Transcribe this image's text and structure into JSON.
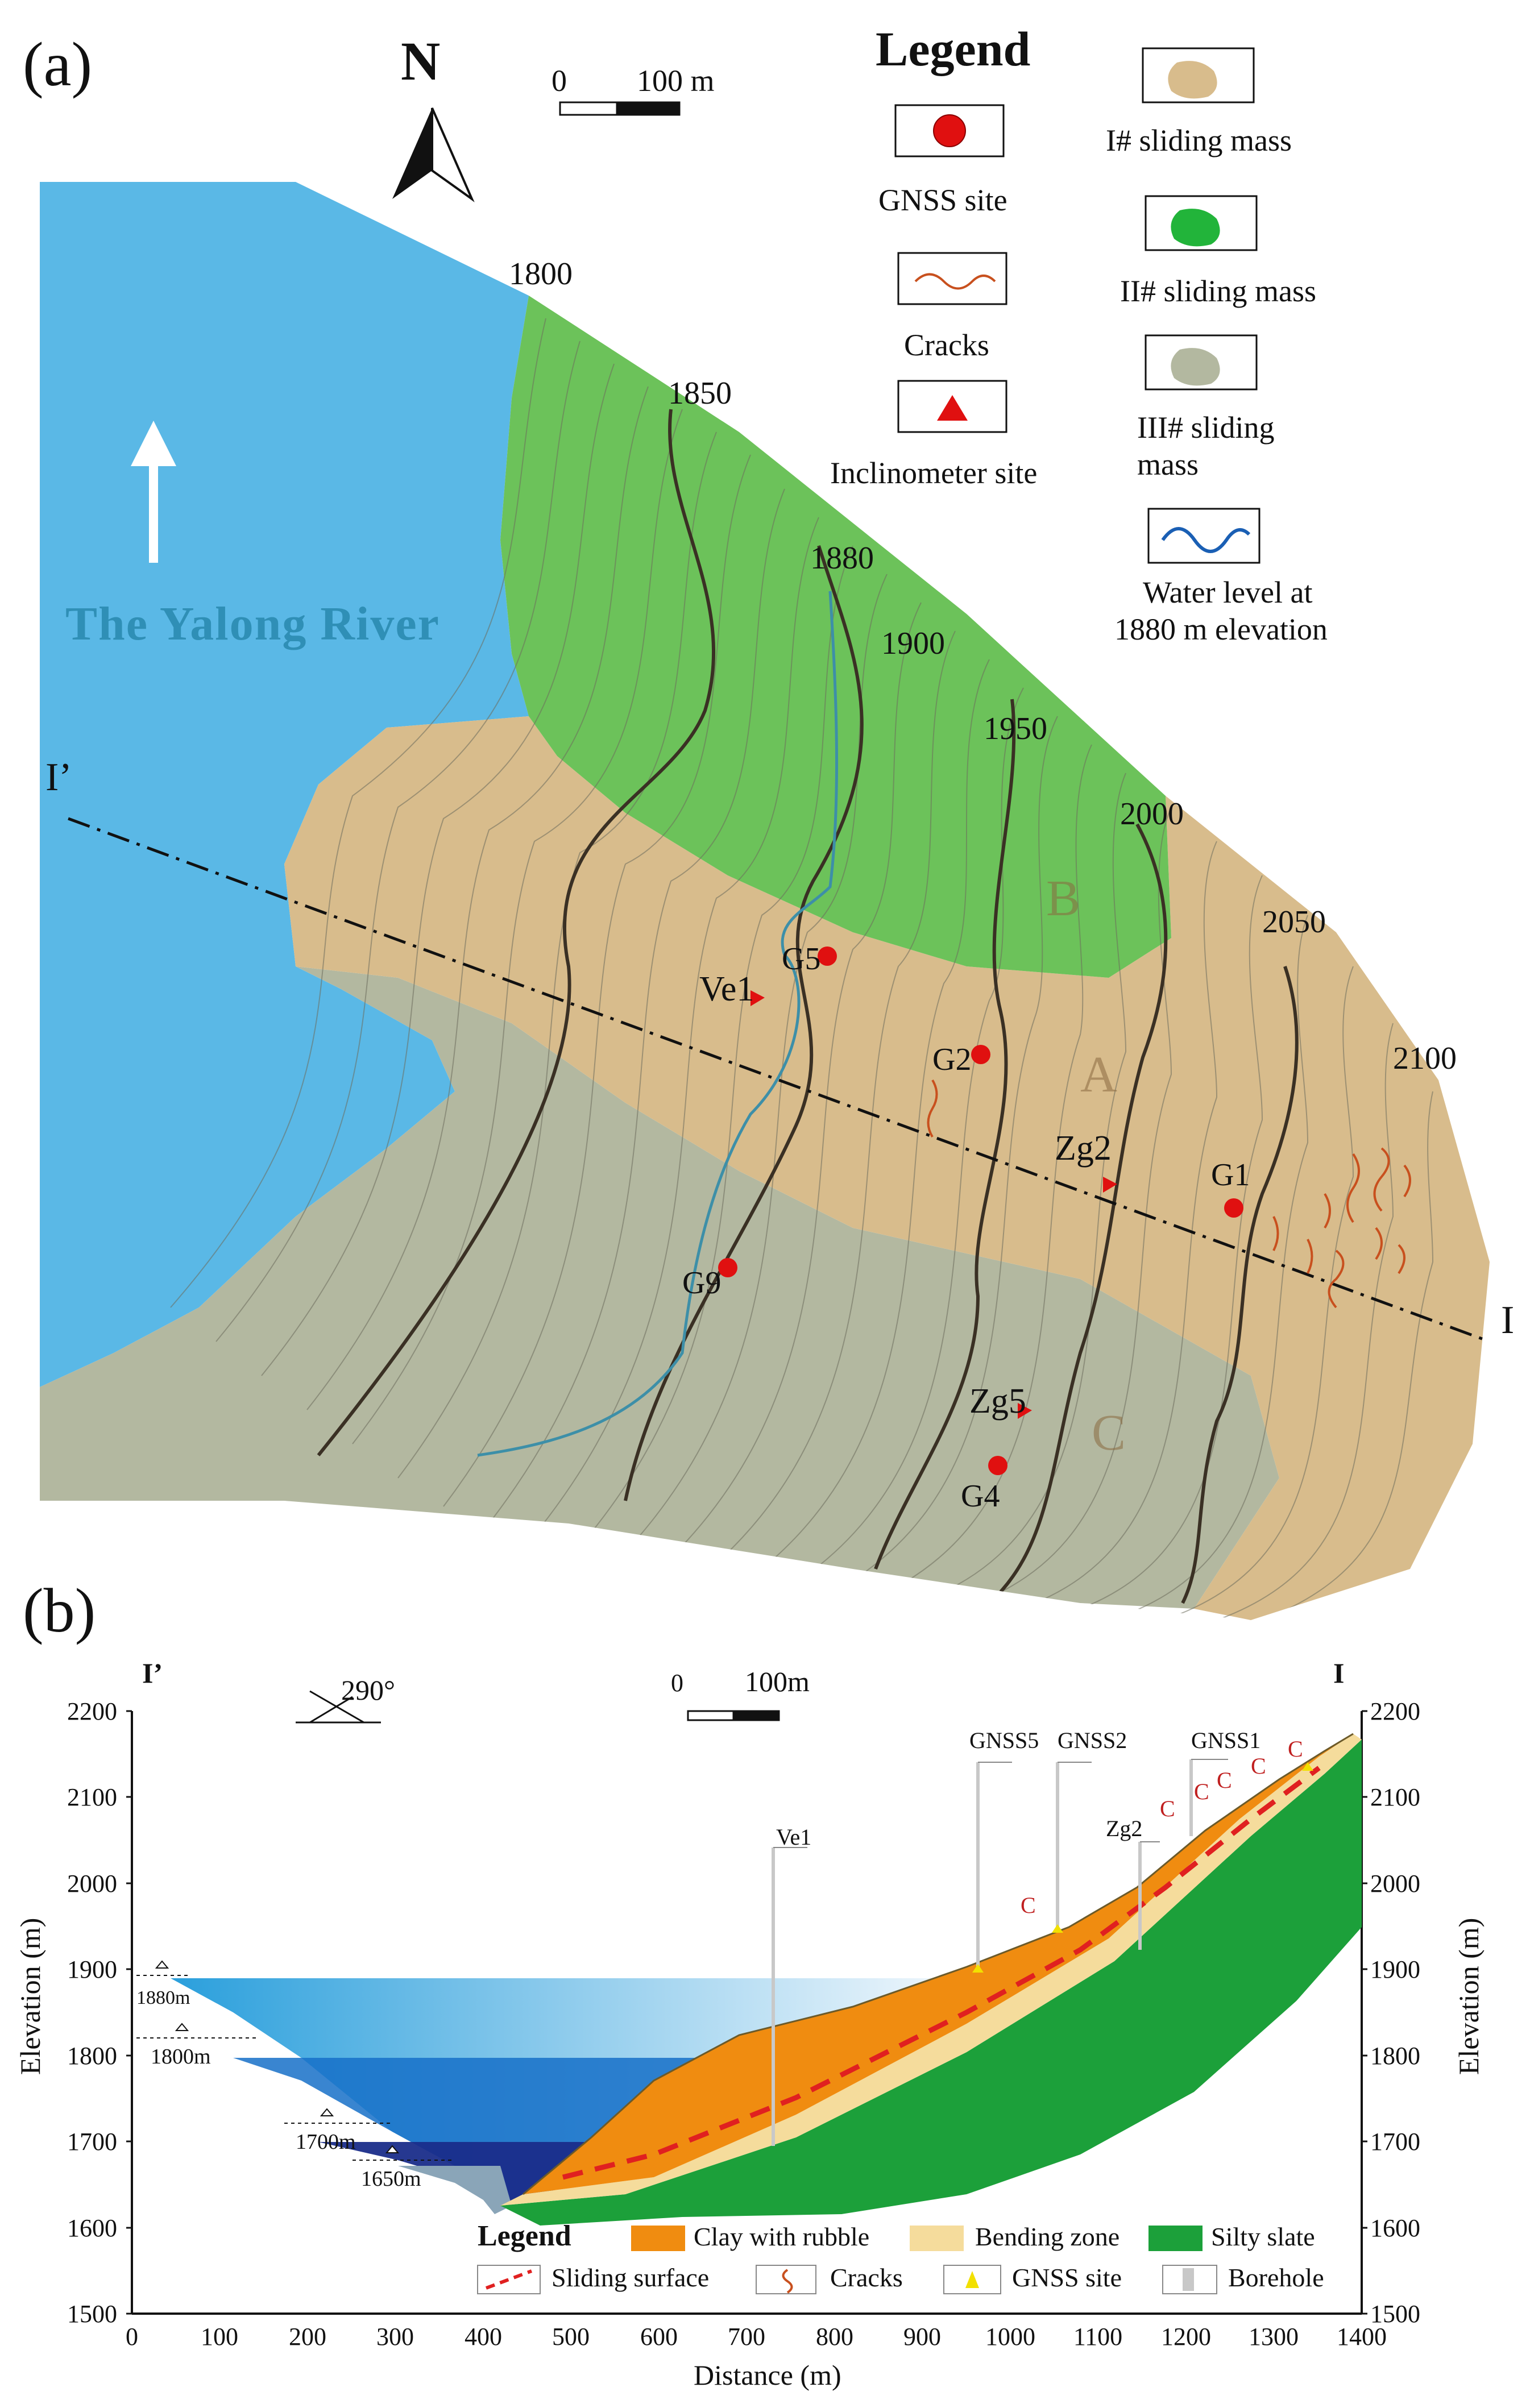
{
  "panel_a": {
    "label": "(a)",
    "north": "N",
    "scale": {
      "zero": "0",
      "length": "100 m"
    },
    "river_label": "The Yalong River",
    "contours": [
      "1800",
      "1850",
      "1880",
      "1900",
      "1950",
      "2000",
      "2050",
      "2100"
    ],
    "zones": {
      "a": "A",
      "b": "B",
      "c": "C"
    },
    "section_ends": {
      "start": "I’",
      "end": "I"
    },
    "sites": {
      "g1": "G1",
      "g2": "G2",
      "g4": "G4",
      "g5": "G5",
      "g9": "G9",
      "ve1": "Ve1",
      "zg2": "Zg2",
      "zg5": "Zg5"
    },
    "legend": {
      "title": "Legend",
      "gnss": "GNSS site",
      "cracks": "Cracks",
      "inclinometer": "Inclinometer site",
      "mass1": "I# sliding mass",
      "mass2": "II# sliding mass",
      "mass3_line1": "III# sliding",
      "mass3_line2": "mass",
      "water_line1": "Water level at",
      "water_line2": "1880 m elevation"
    },
    "colors": {
      "river": "#5ab8e6",
      "mass1": "#d8bc8c",
      "mass2": "#6cc25a",
      "mass3": "#b3b8a0",
      "site": "#e01010"
    }
  },
  "panel_b": {
    "label": "(b)",
    "section_ends": {
      "start": "I’",
      "end": "I"
    },
    "azimuth": "290°",
    "scale": {
      "zero": "0",
      "length": "100m"
    },
    "y_ticks": [
      "2200",
      "2100",
      "2000",
      "1900",
      "1800",
      "1700",
      "1600",
      "1500"
    ],
    "x_ticks": [
      "0",
      "100",
      "200",
      "300",
      "400",
      "500",
      "600",
      "700",
      "800",
      "900",
      "1000",
      "1100",
      "1200",
      "1300",
      "1400"
    ],
    "y_title": "Elevation (m)",
    "x_title": "Distance (m)",
    "water_levels": [
      "1880m",
      "1800m",
      "1700m",
      "1650m"
    ],
    "boreholes": {
      "gnss5": "GNSS5",
      "gnss2": "GNSS2",
      "gnss1": "GNSS1",
      "ve1": "Ve1",
      "zg2": "Zg2"
    },
    "crack_mark": "C",
    "legend": {
      "title": "Legend",
      "clay": "Clay with rubble",
      "bending": "Bending zone",
      "slate": "Silty slate",
      "sliding": "Sliding surface",
      "cracks": "Cracks",
      "gnss": "GNSS site",
      "borehole": "Borehole"
    },
    "colors": {
      "clay": "#f08c10",
      "bending": "#f5dc9c",
      "slate": "#1ca03a",
      "sliding": "#e02020"
    }
  }
}
